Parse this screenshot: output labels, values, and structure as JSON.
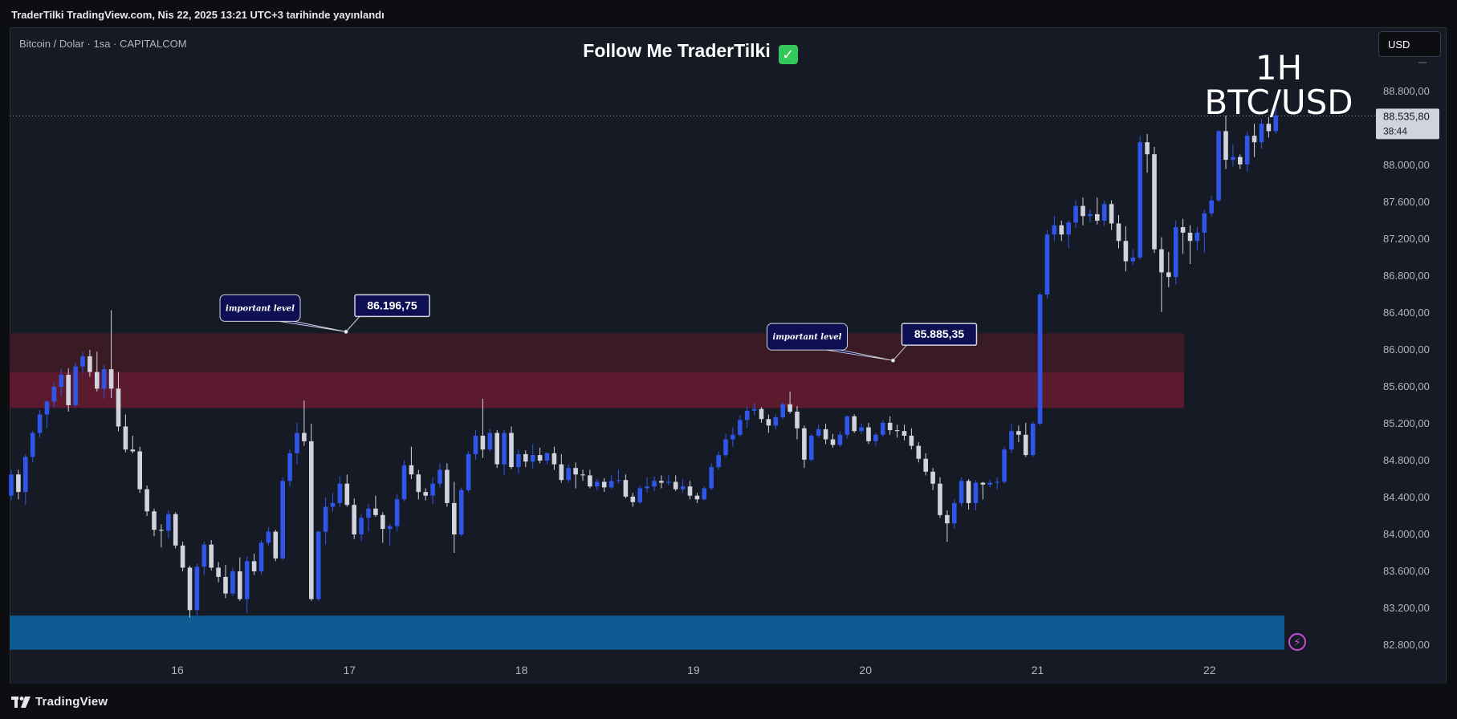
{
  "header": {
    "publish_info": "TraderTilki TradingView.com, Nis 22, 2025 13:21 UTC+3 tarihinde yayınlandı"
  },
  "symbol_info": "Bitcoin / Dolar · 1sa · CAPITALCOM",
  "overlay": {
    "title": "Follow Me TraderTilki",
    "check_icon": "check-mark-icon",
    "timeframe": "1H",
    "pair": "BTC/USD"
  },
  "currency_button": "USD",
  "footer": {
    "brand": "TradingView"
  },
  "colors": {
    "bull": "#2f56e8",
    "bear": "#d1d4dc",
    "background": "#161a25",
    "zone_dark": "#3a1a24",
    "zone_red": "#5c1a2e",
    "zone_blue": "#0f5a92",
    "callout_bg": "#0e0e52"
  },
  "chart_data": {
    "type": "candlestick",
    "title": "Bitcoin / Dolar · 1sa · CAPITALCOM",
    "x_ticks": [
      "16",
      "17",
      "18",
      "19",
      "20",
      "21",
      "22"
    ],
    "y_ticks": [
      "88.800,00",
      "88.400,00",
      "88.000,00",
      "87.600,00",
      "87.200,00",
      "86.800,00",
      "86.400,00",
      "86.000,00",
      "85.600,00",
      "85.200,00",
      "84.800,00",
      "84.400,00",
      "84.000,00",
      "83.600,00",
      "83.200,00",
      "82.800,00"
    ],
    "ylim": [
      82330,
      89170
    ],
    "current_price": {
      "label": "88.535,80",
      "countdown": "38:44",
      "value": 88535.8
    },
    "zones": [
      {
        "name": "resistance-zone-upper",
        "from": 85760,
        "to": 86180
      },
      {
        "name": "resistance-zone-lower",
        "from": 85370,
        "to": 85760
      },
      {
        "name": "support-zone",
        "from": 82750,
        "to": 83120
      }
    ],
    "annotations": [
      {
        "text": "important level",
        "price_label": "86.196,75",
        "value": 86196.75,
        "x_day": 16.98
      },
      {
        "text": "important level",
        "price_label": "85.885,35",
        "value": 85885.35,
        "x_day": 20.16
      }
    ],
    "candles": [
      {
        "o": 84420,
        "h": 84700,
        "l": 84370,
        "c": 84650
      },
      {
        "o": 84650,
        "h": 84700,
        "l": 84380,
        "c": 84460
      },
      {
        "o": 84460,
        "h": 84870,
        "l": 84320,
        "c": 84840
      },
      {
        "o": 84840,
        "h": 85120,
        "l": 84780,
        "c": 85100
      },
      {
        "o": 85100,
        "h": 85350,
        "l": 85050,
        "c": 85300
      },
      {
        "o": 85300,
        "h": 85450,
        "l": 85150,
        "c": 85440
      },
      {
        "o": 85440,
        "h": 85640,
        "l": 85380,
        "c": 85600
      },
      {
        "o": 85600,
        "h": 85800,
        "l": 85500,
        "c": 85730
      },
      {
        "o": 85730,
        "h": 85800,
        "l": 85330,
        "c": 85400
      },
      {
        "o": 85400,
        "h": 85860,
        "l": 85380,
        "c": 85820
      },
      {
        "o": 85820,
        "h": 85980,
        "l": 85750,
        "c": 85930
      },
      {
        "o": 85930,
        "h": 86000,
        "l": 85710,
        "c": 85760
      },
      {
        "o": 85760,
        "h": 85980,
        "l": 85550,
        "c": 85580
      },
      {
        "o": 85580,
        "h": 85840,
        "l": 85470,
        "c": 85790
      },
      {
        "o": 85790,
        "h": 86430,
        "l": 85480,
        "c": 85580
      },
      {
        "o": 85580,
        "h": 85760,
        "l": 85120,
        "c": 85170
      },
      {
        "o": 85170,
        "h": 85300,
        "l": 84890,
        "c": 84920
      },
      {
        "o": 84920,
        "h": 85070,
        "l": 84880,
        "c": 84900
      },
      {
        "o": 84900,
        "h": 84950,
        "l": 84450,
        "c": 84490
      },
      {
        "o": 84490,
        "h": 84530,
        "l": 84200,
        "c": 84250
      },
      {
        "o": 84250,
        "h": 84280,
        "l": 83980,
        "c": 84050
      },
      {
        "o": 84050,
        "h": 84110,
        "l": 83860,
        "c": 84040
      },
      {
        "o": 84040,
        "h": 84260,
        "l": 83960,
        "c": 84220
      },
      {
        "o": 84220,
        "h": 84240,
        "l": 83850,
        "c": 83880
      },
      {
        "o": 83880,
        "h": 83920,
        "l": 83600,
        "c": 83640
      },
      {
        "o": 83640,
        "h": 83660,
        "l": 83100,
        "c": 83180
      },
      {
        "o": 83180,
        "h": 83680,
        "l": 83120,
        "c": 83650
      },
      {
        "o": 83650,
        "h": 83920,
        "l": 83560,
        "c": 83890
      },
      {
        "o": 83890,
        "h": 83940,
        "l": 83610,
        "c": 83640
      },
      {
        "o": 83640,
        "h": 83700,
        "l": 83480,
        "c": 83540
      },
      {
        "o": 83540,
        "h": 83670,
        "l": 83310,
        "c": 83360
      },
      {
        "o": 83360,
        "h": 83640,
        "l": 83330,
        "c": 83600
      },
      {
        "o": 83600,
        "h": 83750,
        "l": 83280,
        "c": 83300
      },
      {
        "o": 83300,
        "h": 83760,
        "l": 83150,
        "c": 83710
      },
      {
        "o": 83710,
        "h": 83790,
        "l": 83560,
        "c": 83600
      },
      {
        "o": 83600,
        "h": 83940,
        "l": 83570,
        "c": 83910
      },
      {
        "o": 83910,
        "h": 84080,
        "l": 83880,
        "c": 84030
      },
      {
        "o": 84030,
        "h": 84050,
        "l": 83710,
        "c": 83740
      },
      {
        "o": 83740,
        "h": 84620,
        "l": 83720,
        "c": 84580
      },
      {
        "o": 84580,
        "h": 84920,
        "l": 84520,
        "c": 84880
      },
      {
        "o": 84880,
        "h": 85210,
        "l": 84760,
        "c": 85100
      },
      {
        "o": 85100,
        "h": 85450,
        "l": 84960,
        "c": 85010
      },
      {
        "o": 85010,
        "h": 85200,
        "l": 83280,
        "c": 83300
      },
      {
        "o": 83300,
        "h": 84040,
        "l": 83280,
        "c": 84030
      },
      {
        "o": 84030,
        "h": 84400,
        "l": 83890,
        "c": 84300
      },
      {
        "o": 84300,
        "h": 84450,
        "l": 84250,
        "c": 84340
      },
      {
        "o": 84340,
        "h": 84630,
        "l": 84300,
        "c": 84550
      },
      {
        "o": 84550,
        "h": 84650,
        "l": 84300,
        "c": 84320
      },
      {
        "o": 84320,
        "h": 84390,
        "l": 83950,
        "c": 84000
      },
      {
        "o": 84000,
        "h": 84220,
        "l": 83930,
        "c": 84180
      },
      {
        "o": 84180,
        "h": 84330,
        "l": 84030,
        "c": 84280
      },
      {
        "o": 84280,
        "h": 84420,
        "l": 84190,
        "c": 84210
      },
      {
        "o": 84210,
        "h": 84240,
        "l": 83910,
        "c": 84060
      },
      {
        "o": 84060,
        "h": 84110,
        "l": 83880,
        "c": 84090
      },
      {
        "o": 84090,
        "h": 84440,
        "l": 84030,
        "c": 84380
      },
      {
        "o": 84380,
        "h": 84800,
        "l": 84360,
        "c": 84750
      },
      {
        "o": 84750,
        "h": 84950,
        "l": 84600,
        "c": 84650
      },
      {
        "o": 84650,
        "h": 84700,
        "l": 84380,
        "c": 84460
      },
      {
        "o": 84460,
        "h": 84500,
        "l": 84370,
        "c": 84420
      },
      {
        "o": 84420,
        "h": 84620,
        "l": 84330,
        "c": 84550
      },
      {
        "o": 84550,
        "h": 84770,
        "l": 84510,
        "c": 84700
      },
      {
        "o": 84700,
        "h": 84770,
        "l": 84300,
        "c": 84340
      },
      {
        "o": 84340,
        "h": 84570,
        "l": 83800,
        "c": 84000
      },
      {
        "o": 84000,
        "h": 84510,
        "l": 83980,
        "c": 84480
      },
      {
        "o": 84480,
        "h": 84900,
        "l": 84460,
        "c": 84870
      },
      {
        "o": 84870,
        "h": 85130,
        "l": 84810,
        "c": 85070
      },
      {
        "o": 85070,
        "h": 85470,
        "l": 84830,
        "c": 84920
      },
      {
        "o": 84920,
        "h": 85140,
        "l": 84900,
        "c": 85100
      },
      {
        "o": 85100,
        "h": 85130,
        "l": 84720,
        "c": 84760
      },
      {
        "o": 84760,
        "h": 85130,
        "l": 84640,
        "c": 85100
      },
      {
        "o": 85100,
        "h": 85170,
        "l": 84710,
        "c": 84730
      },
      {
        "o": 84730,
        "h": 84920,
        "l": 84660,
        "c": 84870
      },
      {
        "o": 84870,
        "h": 84910,
        "l": 84730,
        "c": 84790
      },
      {
        "o": 84790,
        "h": 84980,
        "l": 84710,
        "c": 84860
      },
      {
        "o": 84860,
        "h": 84940,
        "l": 84770,
        "c": 84800
      },
      {
        "o": 84800,
        "h": 84890,
        "l": 84760,
        "c": 84880
      },
      {
        "o": 84880,
        "h": 84950,
        "l": 84700,
        "c": 84760
      },
      {
        "o": 84760,
        "h": 84870,
        "l": 84560,
        "c": 84590
      },
      {
        "o": 84590,
        "h": 84760,
        "l": 84560,
        "c": 84720
      },
      {
        "o": 84720,
        "h": 84780,
        "l": 84500,
        "c": 84650
      },
      {
        "o": 84650,
        "h": 84700,
        "l": 84580,
        "c": 84640
      },
      {
        "o": 84640,
        "h": 84700,
        "l": 84500,
        "c": 84520
      },
      {
        "o": 84520,
        "h": 84600,
        "l": 84480,
        "c": 84570
      },
      {
        "o": 84570,
        "h": 84610,
        "l": 84460,
        "c": 84510
      },
      {
        "o": 84510,
        "h": 84640,
        "l": 84490,
        "c": 84580
      },
      {
        "o": 84580,
        "h": 84700,
        "l": 84550,
        "c": 84590
      },
      {
        "o": 84590,
        "h": 84650,
        "l": 84390,
        "c": 84410
      },
      {
        "o": 84410,
        "h": 84450,
        "l": 84300,
        "c": 84350
      },
      {
        "o": 84350,
        "h": 84530,
        "l": 84330,
        "c": 84500
      },
      {
        "o": 84500,
        "h": 84620,
        "l": 84450,
        "c": 84520
      },
      {
        "o": 84520,
        "h": 84630,
        "l": 84470,
        "c": 84580
      },
      {
        "o": 84580,
        "h": 84640,
        "l": 84500,
        "c": 84560
      },
      {
        "o": 84560,
        "h": 84640,
        "l": 84530,
        "c": 84570
      },
      {
        "o": 84570,
        "h": 84640,
        "l": 84470,
        "c": 84490
      },
      {
        "o": 84490,
        "h": 84600,
        "l": 84450,
        "c": 84520
      },
      {
        "o": 84520,
        "h": 84580,
        "l": 84380,
        "c": 84420
      },
      {
        "o": 84420,
        "h": 84450,
        "l": 84340,
        "c": 84380
      },
      {
        "o": 84380,
        "h": 84520,
        "l": 84370,
        "c": 84500
      },
      {
        "o": 84500,
        "h": 84770,
        "l": 84480,
        "c": 84730
      },
      {
        "o": 84730,
        "h": 84900,
        "l": 84700,
        "c": 84860
      },
      {
        "o": 84860,
        "h": 85090,
        "l": 84840,
        "c": 85030
      },
      {
        "o": 85030,
        "h": 85160,
        "l": 84950,
        "c": 85080
      },
      {
        "o": 85080,
        "h": 85290,
        "l": 85060,
        "c": 85240
      },
      {
        "o": 85240,
        "h": 85390,
        "l": 85150,
        "c": 85340
      },
      {
        "o": 85340,
        "h": 85420,
        "l": 85290,
        "c": 85360
      },
      {
        "o": 85360,
        "h": 85380,
        "l": 85210,
        "c": 85250
      },
      {
        "o": 85250,
        "h": 85300,
        "l": 85100,
        "c": 85180
      },
      {
        "o": 85180,
        "h": 85300,
        "l": 85140,
        "c": 85270
      },
      {
        "o": 85270,
        "h": 85430,
        "l": 85250,
        "c": 85410
      },
      {
        "o": 85410,
        "h": 85550,
        "l": 85310,
        "c": 85330
      },
      {
        "o": 85330,
        "h": 85390,
        "l": 85030,
        "c": 85150
      },
      {
        "o": 85150,
        "h": 85180,
        "l": 84720,
        "c": 84810
      },
      {
        "o": 84810,
        "h": 85090,
        "l": 84790,
        "c": 85070
      },
      {
        "o": 85070,
        "h": 85190,
        "l": 85050,
        "c": 85140
      },
      {
        "o": 85140,
        "h": 85200,
        "l": 84980,
        "c": 85030
      },
      {
        "o": 85030,
        "h": 85090,
        "l": 84940,
        "c": 84970
      },
      {
        "o": 84970,
        "h": 85120,
        "l": 84950,
        "c": 85080
      },
      {
        "o": 85080,
        "h": 85290,
        "l": 85040,
        "c": 85280
      },
      {
        "o": 85280,
        "h": 85300,
        "l": 85100,
        "c": 85120
      },
      {
        "o": 85120,
        "h": 85200,
        "l": 85090,
        "c": 85160
      },
      {
        "o": 85160,
        "h": 85210,
        "l": 84980,
        "c": 85010
      },
      {
        "o": 85010,
        "h": 85100,
        "l": 84960,
        "c": 85080
      },
      {
        "o": 85080,
        "h": 85240,
        "l": 85060,
        "c": 85210
      },
      {
        "o": 85210,
        "h": 85280,
        "l": 85080,
        "c": 85130
      },
      {
        "o": 85130,
        "h": 85190,
        "l": 85050,
        "c": 85120
      },
      {
        "o": 85120,
        "h": 85190,
        "l": 85020,
        "c": 85070
      },
      {
        "o": 85070,
        "h": 85150,
        "l": 84920,
        "c": 84960
      },
      {
        "o": 84960,
        "h": 85000,
        "l": 84780,
        "c": 84820
      },
      {
        "o": 84820,
        "h": 84880,
        "l": 84640,
        "c": 84680
      },
      {
        "o": 84680,
        "h": 84720,
        "l": 84480,
        "c": 84550
      },
      {
        "o": 84550,
        "h": 84620,
        "l": 84180,
        "c": 84210
      },
      {
        "o": 84210,
        "h": 84260,
        "l": 83920,
        "c": 84120
      },
      {
        "o": 84120,
        "h": 84380,
        "l": 84060,
        "c": 84340
      },
      {
        "o": 84340,
        "h": 84620,
        "l": 84300,
        "c": 84580
      },
      {
        "o": 84580,
        "h": 84600,
        "l": 84270,
        "c": 84340
      },
      {
        "o": 84340,
        "h": 84590,
        "l": 84260,
        "c": 84560
      },
      {
        "o": 84560,
        "h": 84570,
        "l": 84380,
        "c": 84540
      },
      {
        "o": 84540,
        "h": 84590,
        "l": 84510,
        "c": 84560
      },
      {
        "o": 84560,
        "h": 84620,
        "l": 84490,
        "c": 84570
      },
      {
        "o": 84570,
        "h": 84950,
        "l": 84550,
        "c": 84920
      },
      {
        "o": 84920,
        "h": 85200,
        "l": 84880,
        "c": 85120
      },
      {
        "o": 85120,
        "h": 85180,
        "l": 85000,
        "c": 85080
      },
      {
        "o": 85080,
        "h": 85210,
        "l": 84840,
        "c": 84860
      },
      {
        "o": 84860,
        "h": 85220,
        "l": 84840,
        "c": 85200
      },
      {
        "o": 85200,
        "h": 86620,
        "l": 85180,
        "c": 86600
      },
      {
        "o": 86600,
        "h": 87300,
        "l": 86560,
        "c": 87250
      },
      {
        "o": 87250,
        "h": 87450,
        "l": 87180,
        "c": 87350
      },
      {
        "o": 87350,
        "h": 87400,
        "l": 87180,
        "c": 87250
      },
      {
        "o": 87250,
        "h": 87400,
        "l": 87100,
        "c": 87380
      },
      {
        "o": 87380,
        "h": 87620,
        "l": 87320,
        "c": 87560
      },
      {
        "o": 87560,
        "h": 87650,
        "l": 87350,
        "c": 87450
      },
      {
        "o": 87450,
        "h": 87520,
        "l": 87380,
        "c": 87470
      },
      {
        "o": 87470,
        "h": 87650,
        "l": 87360,
        "c": 87400
      },
      {
        "o": 87400,
        "h": 87620,
        "l": 87340,
        "c": 87580
      },
      {
        "o": 87580,
        "h": 87620,
        "l": 87300,
        "c": 87370
      },
      {
        "o": 87370,
        "h": 87460,
        "l": 87100,
        "c": 87180
      },
      {
        "o": 87180,
        "h": 87340,
        "l": 86850,
        "c": 86960
      },
      {
        "o": 86960,
        "h": 87090,
        "l": 86920,
        "c": 87000
      },
      {
        "o": 87000,
        "h": 88320,
        "l": 86980,
        "c": 88250
      },
      {
        "o": 88250,
        "h": 88340,
        "l": 87920,
        "c": 88120
      },
      {
        "o": 88120,
        "h": 88200,
        "l": 87050,
        "c": 87090
      },
      {
        "o": 87090,
        "h": 87220,
        "l": 86410,
        "c": 86840
      },
      {
        "o": 86840,
        "h": 87060,
        "l": 86680,
        "c": 86790
      },
      {
        "o": 86790,
        "h": 87400,
        "l": 86710,
        "c": 87330
      },
      {
        "o": 87330,
        "h": 87420,
        "l": 87040,
        "c": 87270
      },
      {
        "o": 87270,
        "h": 87350,
        "l": 86930,
        "c": 87180
      },
      {
        "o": 87180,
        "h": 87330,
        "l": 87080,
        "c": 87270
      },
      {
        "o": 87270,
        "h": 87520,
        "l": 87050,
        "c": 87480
      },
      {
        "o": 87480,
        "h": 87670,
        "l": 87440,
        "c": 87620
      },
      {
        "o": 87620,
        "h": 88380,
        "l": 87600,
        "c": 88370
      },
      {
        "o": 88370,
        "h": 88540,
        "l": 87960,
        "c": 88060
      },
      {
        "o": 88060,
        "h": 88230,
        "l": 87990,
        "c": 88090
      },
      {
        "o": 88090,
        "h": 88120,
        "l": 87960,
        "c": 88010
      },
      {
        "o": 88010,
        "h": 88360,
        "l": 87930,
        "c": 88320
      },
      {
        "o": 88320,
        "h": 88450,
        "l": 88090,
        "c": 88250
      },
      {
        "o": 88250,
        "h": 88500,
        "l": 88180,
        "c": 88450
      },
      {
        "o": 88450,
        "h": 88520,
        "l": 88300,
        "c": 88370
      },
      {
        "o": 88370,
        "h": 88640,
        "l": 88340,
        "c": 88540
      }
    ]
  }
}
